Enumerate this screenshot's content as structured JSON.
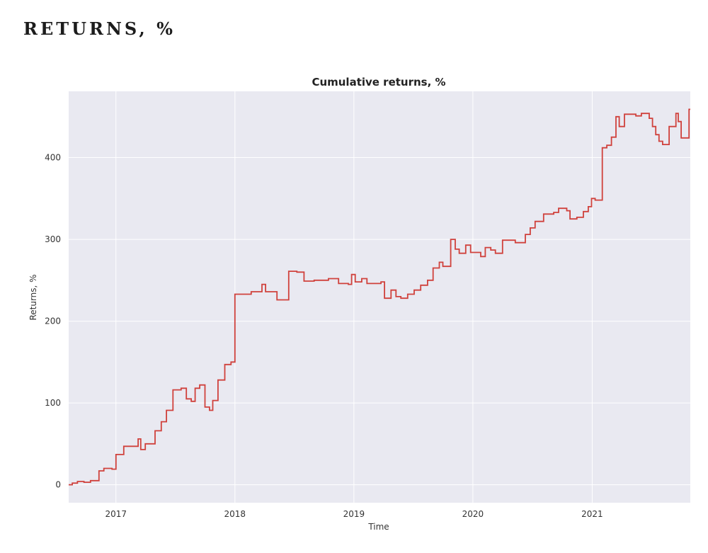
{
  "heading": "RETURNS, %",
  "chart_data": {
    "type": "line",
    "title": "Cumulative returns, %",
    "xlabel": "Time",
    "ylabel": "Returns, %",
    "x_ticks": [
      "2017",
      "2018",
      "2019",
      "2020",
      "2021"
    ],
    "y_ticks": [
      0,
      100,
      200,
      300,
      400
    ],
    "xlim": [
      "2016-08-09",
      "2021-10-29"
    ],
    "ylim": [
      -22,
      481
    ],
    "grid": true,
    "background_color": "#e9e9f1",
    "line_color": "#d0413c",
    "series": [
      {
        "name": "",
        "points": [
          [
            "2016-08-09",
            0
          ],
          [
            "2016-08-20",
            2
          ],
          [
            "2016-09-05",
            4
          ],
          [
            "2016-09-25",
            3
          ],
          [
            "2016-10-15",
            5
          ],
          [
            "2016-11-10",
            17
          ],
          [
            "2016-11-25",
            20
          ],
          [
            "2016-12-20",
            19
          ],
          [
            "2017-01-01",
            37
          ],
          [
            "2017-01-25",
            47
          ],
          [
            "2017-03-10",
            56
          ],
          [
            "2017-03-18",
            43
          ],
          [
            "2017-04-01",
            50
          ],
          [
            "2017-05-01",
            66
          ],
          [
            "2017-05-20",
            77
          ],
          [
            "2017-06-05",
            91
          ],
          [
            "2017-06-25",
            116
          ],
          [
            "2017-07-20",
            118
          ],
          [
            "2017-08-05",
            105
          ],
          [
            "2017-08-20",
            102
          ],
          [
            "2017-09-01",
            118
          ],
          [
            "2017-09-15",
            122
          ],
          [
            "2017-10-01",
            95
          ],
          [
            "2017-10-15",
            91
          ],
          [
            "2017-10-25",
            103
          ],
          [
            "2017-11-10",
            128
          ],
          [
            "2017-12-01",
            147
          ],
          [
            "2017-12-20",
            150
          ],
          [
            "2018-01-01",
            233
          ],
          [
            "2018-02-20",
            236
          ],
          [
            "2018-03-25",
            245
          ],
          [
            "2018-04-05",
            236
          ],
          [
            "2018-05-10",
            226
          ],
          [
            "2018-06-15",
            261
          ],
          [
            "2018-07-10",
            260
          ],
          [
            "2018-08-01",
            249
          ],
          [
            "2018-09-01",
            250
          ],
          [
            "2018-10-15",
            252
          ],
          [
            "2018-11-15",
            246
          ],
          [
            "2018-12-15",
            245
          ],
          [
            "2018-12-25",
            257
          ],
          [
            "2019-01-05",
            248
          ],
          [
            "2019-01-25",
            252
          ],
          [
            "2019-02-10",
            246
          ],
          [
            "2019-03-25",
            248
          ],
          [
            "2019-04-05",
            228
          ],
          [
            "2019-04-25",
            238
          ],
          [
            "2019-05-10",
            230
          ],
          [
            "2019-05-25",
            228
          ],
          [
            "2019-06-15",
            233
          ],
          [
            "2019-07-05",
            238
          ],
          [
            "2019-07-25",
            244
          ],
          [
            "2019-08-15",
            250
          ],
          [
            "2019-09-01",
            265
          ],
          [
            "2019-09-20",
            272
          ],
          [
            "2019-10-01",
            267
          ],
          [
            "2019-10-25",
            300
          ],
          [
            "2019-11-08",
            288
          ],
          [
            "2019-11-20",
            283
          ],
          [
            "2019-12-10",
            293
          ],
          [
            "2019-12-25",
            284
          ],
          [
            "2020-01-25",
            279
          ],
          [
            "2020-02-08",
            290
          ],
          [
            "2020-02-25",
            287
          ],
          [
            "2020-03-10",
            283
          ],
          [
            "2020-04-01",
            299
          ],
          [
            "2020-05-10",
            296
          ],
          [
            "2020-06-10",
            306
          ],
          [
            "2020-06-25",
            314
          ],
          [
            "2020-07-10",
            322
          ],
          [
            "2020-08-05",
            331
          ],
          [
            "2020-09-05",
            333
          ],
          [
            "2020-09-20",
            338
          ],
          [
            "2020-10-15",
            335
          ],
          [
            "2020-10-25",
            325
          ],
          [
            "2020-11-15",
            327
          ],
          [
            "2020-12-05",
            334
          ],
          [
            "2020-12-20",
            340
          ],
          [
            "2020-12-30",
            350
          ],
          [
            "2021-01-10",
            348
          ],
          [
            "2021-02-01",
            412
          ],
          [
            "2021-02-15",
            415
          ],
          [
            "2021-03-01",
            425
          ],
          [
            "2021-03-15",
            450
          ],
          [
            "2021-03-25",
            438
          ],
          [
            "2021-04-10",
            453
          ],
          [
            "2021-05-15",
            451
          ],
          [
            "2021-06-01",
            454
          ],
          [
            "2021-06-25",
            448
          ],
          [
            "2021-07-05",
            438
          ],
          [
            "2021-07-15",
            428
          ],
          [
            "2021-07-25",
            420
          ],
          [
            "2021-08-05",
            416
          ],
          [
            "2021-08-25",
            438
          ],
          [
            "2021-09-15",
            454
          ],
          [
            "2021-09-22",
            444
          ],
          [
            "2021-10-01",
            424
          ],
          [
            "2021-10-25",
            459
          ],
          [
            "2021-10-29",
            459
          ]
        ]
      }
    ]
  }
}
